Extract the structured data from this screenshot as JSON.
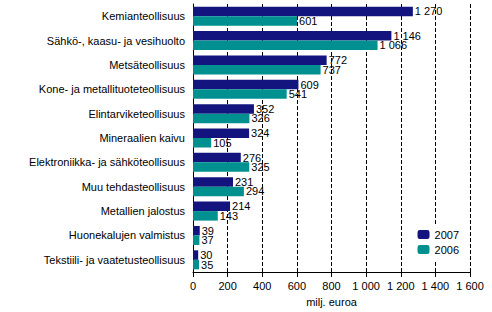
{
  "chart_data": {
    "type": "bar",
    "orientation": "horizontal",
    "categories": [
      "Kemianteollisuus",
      "Sähkö-, kaasu- ja vesihuolto",
      "Metsäteollisuus",
      "Kone- ja metallituoteteollisuus",
      "Elintarviketeollisuus",
      "Mineraalien kaivu",
      "Elektroniikka- ja sähköteollisuus",
      "Muu tehdasteollisuus",
      "Metallien jalostus",
      "Huonekalujen valmistus",
      "Tekstiili- ja vaatetusteollisuus"
    ],
    "series": [
      {
        "name": "2007",
        "color": "#14147f",
        "values": [
          1270,
          1146,
          772,
          609,
          352,
          324,
          276,
          231,
          214,
          39,
          30
        ],
        "value_labels": [
          "1 270",
          "1 146",
          "772",
          "609",
          "352",
          "324",
          "276",
          "231",
          "214",
          "39",
          "30"
        ]
      },
      {
        "name": "2006",
        "color": "#009090",
        "values": [
          601,
          1066,
          737,
          541,
          326,
          105,
          325,
          294,
          143,
          37,
          35
        ],
        "value_labels": [
          "601",
          "1 066",
          "737",
          "541",
          "326",
          "105",
          "325",
          "294",
          "143",
          "37",
          "35"
        ]
      }
    ],
    "xlabel": "milj. euroa",
    "xlim": [
      0,
      1600
    ],
    "xticks": [
      0,
      200,
      400,
      600,
      800,
      {
        "value": 1000,
        "label": "1 000"
      },
      {
        "value": 1200,
        "label": "1 200"
      },
      {
        "value": 1400,
        "label": "1 400"
      },
      {
        "value": 1600,
        "label": "1 600"
      }
    ],
    "grid": true,
    "legend": "lower right",
    "data_labels": true
  }
}
